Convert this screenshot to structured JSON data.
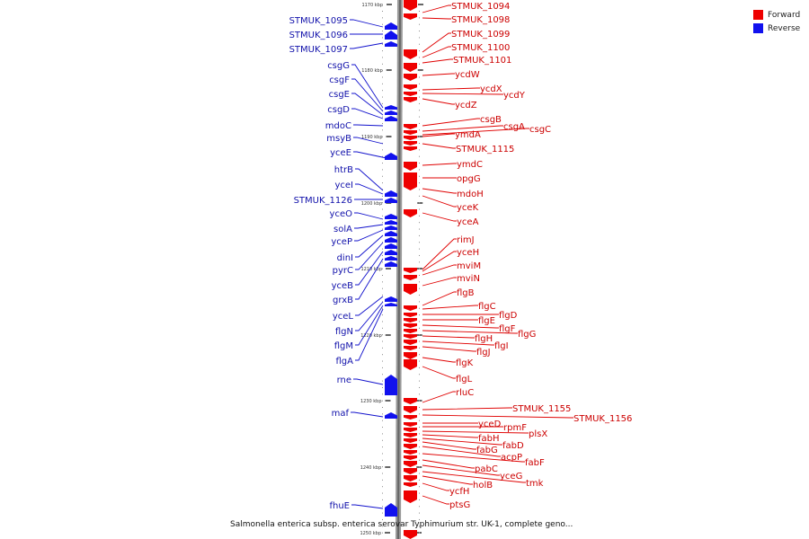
{
  "legend": {
    "items": [
      {
        "label": "Forward",
        "color": "#ee0000"
      },
      {
        "label": "Reverse",
        "color": "#1111ee"
      }
    ]
  },
  "caption": "Salmonella enterica subsp. enterica serovar Typhimurium str. UK-1, complete geno...",
  "ticks": [
    "1170 kbp",
    "1180 kbp",
    "1190 kbp",
    "1200 kbp",
    "1210 kbp",
    "1220 kbp",
    "1230 kbp",
    "1240 kbp",
    "1250 kbp"
  ],
  "forward_genes": [
    "STMUK_1094",
    "STMUK_1098",
    "STMUK_1099",
    "STMUK_1100",
    "STMUK_1101",
    "ycdW",
    "ycdX",
    "ycdY",
    "ycdZ",
    "csgB",
    "csgA",
    "csgC",
    "ymdA",
    "STMUK_1115",
    "ymdC",
    "opgG",
    "mdoH",
    "yceK",
    "yceA",
    "rimJ",
    "yceH",
    "mviM",
    "mviN",
    "flgB",
    "flgC",
    "flgD",
    "flgE",
    "flgF",
    "flgG",
    "flgH",
    "flgI",
    "flgJ",
    "flgK",
    "flgL",
    "rluC",
    "STMUK_1155",
    "STMUK_1156",
    "yceD",
    "rpmF",
    "plsX",
    "fabH",
    "fabD",
    "fabG",
    "acpP",
    "fabF",
    "pabC",
    "yceG",
    "tmk",
    "holB",
    "ycfH",
    "ptsG"
  ],
  "reverse_genes": [
    "STMUK_1095",
    "STMUK_1096",
    "STMUK_1097",
    "csgG",
    "csgF",
    "csgE",
    "csgD",
    "mdoC",
    "msyB",
    "yceE",
    "htrB",
    "yceI",
    "STMUK_1126",
    "yceO",
    "solA",
    "yceP",
    "dinI",
    "pyrC",
    "yceB",
    "grxB",
    "yceL",
    "flgN",
    "flgM",
    "flgA",
    "rne",
    "maf",
    "fhuE"
  ]
}
